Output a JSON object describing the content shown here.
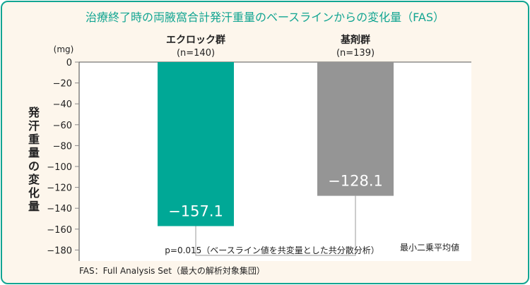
{
  "chart_data": {
    "type": "bar",
    "title": "治療終了時の両腋窩合計発汗重量のベースラインからの変化量（FAS）",
    "categories": [
      "エクロック群",
      "基剤群"
    ],
    "category_n": [
      "(n=140)",
      "(n=139)"
    ],
    "values": [
      -157.1,
      -128.1
    ],
    "value_labels": [
      "−157.1",
      "−128.1"
    ],
    "colors": [
      "#00a896",
      "#959595"
    ],
    "ylabel": "発汗重量の変化量",
    "yunit": "(mg)",
    "ylim": [
      -190,
      0
    ],
    "yticks": [
      0,
      -20,
      -40,
      -60,
      -80,
      -100,
      -120,
      -140,
      -160,
      -180
    ],
    "ytick_labels": [
      "0",
      "−20",
      "−40",
      "−60",
      "−80",
      "−100",
      "−120",
      "−140",
      "−160",
      "−180"
    ],
    "annotation": "p=0.015（ベースライン値を共変量とした共分散分析）",
    "note_right": "最小二乗平均値",
    "footnote": "FAS：Full Analysis Set（最大の解析対象集団）",
    "grid": false
  }
}
